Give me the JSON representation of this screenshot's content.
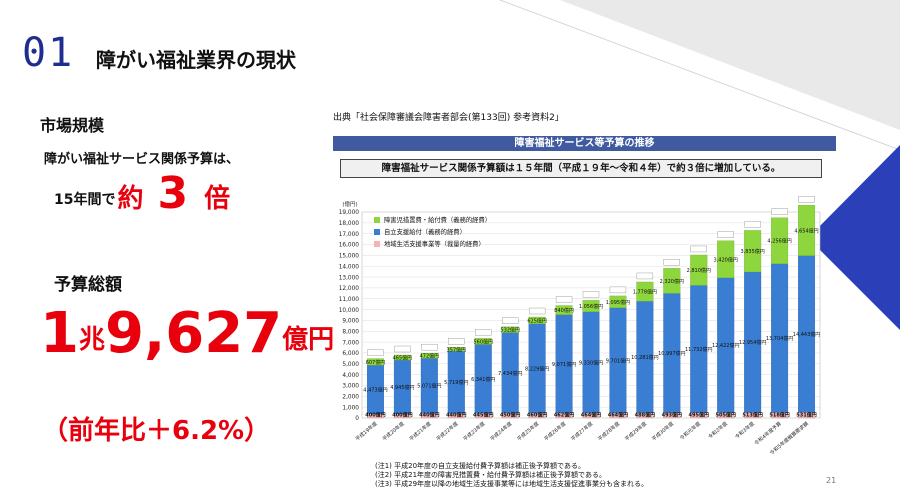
{
  "slide": {
    "number": "01",
    "title": "障がい福祉業界の現状"
  },
  "left_panel": {
    "market_heading": "市場規模",
    "intro": "障がい福祉サービス関係予算は、",
    "growth_prefix": "15年間で",
    "growth_approx": "約",
    "growth_number": "3",
    "growth_unit": "倍",
    "total_heading": "予算総額",
    "total_one": "1",
    "total_cho": "兆",
    "total_number": "9,627",
    "total_unit": "億円",
    "yoy": "（前年比＋6.2%）"
  },
  "source": "出典「社会保障審議会障害者部会(第133回) 参考資料2」",
  "page_number": "21",
  "colors": {
    "accent_red": "#e8000d",
    "brand_blue": "#1f2d8f",
    "banner": "#3f5a9e",
    "bar_blue": "#3a7ed3",
    "bar_green": "#8ed63e",
    "bar_pink": "#f5b4b4"
  },
  "chart_data": {
    "type": "bar",
    "stacked": true,
    "title": "障害福祉サービス等予算の推移",
    "subtitle": "障害福祉サービス関係予算額は１５年間（平成１９年～令和４年）で約３倍に増加している。",
    "ylabel": "(億円)",
    "ylim": [
      0,
      19000
    ],
    "yticks": [
      "0",
      "1,000",
      "2,000",
      "3,000",
      "4,000",
      "5,000",
      "6,000",
      "7,000",
      "8,000",
      "9,000",
      "10,000",
      "11,000",
      "12,000",
      "13,000",
      "14,000",
      "15,000",
      "16,000",
      "17,000",
      "18,000",
      "19,000"
    ],
    "legend_position": "top-left",
    "categories": [
      "平成19年度",
      "平成20年度",
      "平成21年度",
      "平成22年度",
      "平成23年度",
      "平成24年度",
      "平成25年度",
      "平成26年度",
      "平成27年度",
      "平成28年度",
      "平成29年度",
      "平成30年度",
      "令和元年度",
      "令和2年度",
      "令和3年度",
      "令和4年度予算",
      "令和5年度概算要求額"
    ],
    "series": [
      {
        "name": "地域生活支援事業等（裁量的経費）",
        "values": [
          400,
          400,
          440,
          440,
          445,
          450,
          460,
          462,
          464,
          464,
          488,
          493,
          495,
          505,
          513,
          518,
          531
        ],
        "labels": [
          "400億円",
          "400億円",
          "440億円",
          "440億円",
          "445億円",
          "450億円",
          "460億円",
          "462億円",
          "464億円",
          "464億円",
          "488億円",
          "493億円",
          "495億円",
          "505億円",
          "513億円",
          "518億円",
          "531億円"
        ]
      },
      {
        "name": "自立支援給付（義務的経費）",
        "values": [
          4473,
          4945,
          5071,
          5719,
          6341,
          7434,
          8229,
          9071,
          9330,
          9701,
          10281,
          10997,
          11732,
          12422,
          12954,
          13704,
          14443
        ],
        "labels": [
          "4,473億円",
          "4,945億円",
          "5,071億円",
          "5,719億円",
          "6,341億円",
          "7,434億円",
          "8,229億円",
          "9,071億円",
          "9,330億円",
          "9,701億円",
          "10,281億円",
          "10,997億円",
          "11,732億円",
          "12,422億円",
          "12,954億円",
          "13,704億円",
          "14,443億円"
        ]
      },
      {
        "name": "障害児措置費・給付費（義務的経費）",
        "values": [
          607,
          465,
          472,
          357,
          560,
          532,
          625,
          840,
          1056,
          1095,
          1778,
          2320,
          2810,
          3420,
          3835,
          4256,
          4654
        ],
        "labels": [
          "607億円",
          "465億円",
          "472億円",
          "357億円",
          "560億円",
          "532億円",
          "625億円",
          "840億円",
          "1,056億円",
          "1,095億円",
          "1,778億円",
          "2,320億円",
          "2,810億円",
          "3,420億円",
          "3,835億円",
          "4,256億円",
          "4,654億円"
        ]
      }
    ],
    "notes": [
      "(注1) 平成20年度の自立支援給付費予算額は補正後予算額である。",
      "(注2) 平成21年度の障害児措置費・給付費予算額は補正後予算額である。",
      "(注3) 平成29年度以降の地域生活支援事業等には地域生活支援促進事業分も含まれる。"
    ]
  }
}
